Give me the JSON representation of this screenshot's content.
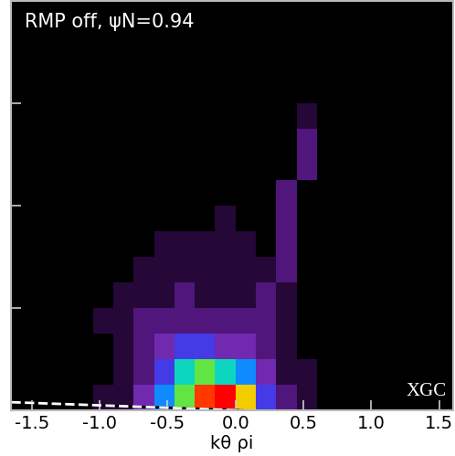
{
  "chart_data": {
    "type": "heatmap",
    "title": "RMP off, ψN=0.94",
    "annotation": "XGC",
    "x_label": "kθ ρi",
    "xlim": [
      -1.65,
      1.6
    ],
    "ylim": [
      0,
      4
    ],
    "xticks": [
      -1.5,
      {
        "value": -1,
        "label": "-1.0"
      },
      -0.5,
      {
        "value": 0,
        "label": "0.0"
      },
      0.5,
      {
        "value": 1,
        "label": "1.0"
      },
      1.5
    ],
    "yticks": [
      1,
      2,
      3
    ],
    "tick_labels": "x",
    "color_range": [
      0,
      10
    ],
    "x_edges": [
      -1.65,
      -1.5,
      -1.35,
      -1.2,
      -1.05,
      -0.9,
      -0.75,
      -0.6,
      -0.45,
      -0.3,
      -0.15,
      0.0,
      0.15,
      0.3,
      0.45,
      0.6,
      0.75,
      0.9,
      1.05,
      1.2,
      1.35,
      1.5,
      1.65
    ],
    "y_edges": [
      0,
      0.25,
      0.5,
      0.75,
      1.0,
      1.25,
      1.5,
      1.75,
      2.0,
      2.25,
      2.5,
      2.75,
      3.0,
      3.25,
      3.5,
      3.75,
      4.0
    ],
    "cells": [
      [
        0,
        0,
        0,
        0,
        1,
        1,
        3,
        5,
        7,
        9,
        10,
        8,
        4,
        2,
        1,
        0,
        0,
        0,
        0,
        0,
        0,
        0
      ],
      [
        0,
        0,
        0,
        0,
        0,
        1,
        2,
        4,
        6,
        7,
        6,
        5,
        3,
        1,
        1,
        0,
        0,
        0,
        0,
        0,
        0,
        0
      ],
      [
        0,
        0,
        0,
        0,
        0,
        1,
        2,
        3,
        4,
        4,
        3,
        3,
        2,
        1,
        0,
        0,
        0,
        0,
        0,
        0,
        0,
        0
      ],
      [
        0,
        0,
        0,
        0,
        1,
        1,
        2,
        2,
        2,
        2,
        2,
        2,
        2,
        1,
        0,
        0,
        0,
        0,
        0,
        0,
        0,
        0
      ],
      [
        0,
        0,
        0,
        0,
        0,
        1,
        1,
        1,
        2,
        1,
        1,
        1,
        2,
        1,
        0,
        0,
        0,
        0,
        0,
        0,
        0,
        0
      ],
      [
        0,
        0,
        0,
        0,
        0,
        0,
        1,
        1,
        1,
        1,
        1,
        1,
        1,
        2,
        0,
        0,
        0,
        0,
        0,
        0,
        0,
        0
      ],
      [
        0,
        0,
        0,
        0,
        0,
        0,
        0,
        1,
        1,
        1,
        1,
        1,
        0,
        2,
        0,
        0,
        0,
        0,
        0,
        0,
        0,
        0
      ],
      [
        0,
        0,
        0,
        0,
        0,
        0,
        0,
        0,
        0,
        0,
        1,
        0,
        0,
        2,
        0,
        0,
        0,
        0,
        0,
        0,
        0,
        0
      ],
      [
        0,
        0,
        0,
        0,
        0,
        0,
        0,
        0,
        0,
        0,
        0,
        0,
        0,
        2,
        0,
        0,
        0,
        0,
        0,
        0,
        0,
        0
      ],
      [
        0,
        0,
        0,
        0,
        0,
        0,
        0,
        0,
        0,
        0,
        0,
        0,
        0,
        0,
        2,
        0,
        0,
        0,
        0,
        0,
        0,
        0
      ],
      [
        0,
        0,
        0,
        0,
        0,
        0,
        0,
        0,
        0,
        0,
        0,
        0,
        0,
        0,
        2,
        0,
        0,
        0,
        0,
        0,
        0,
        0
      ],
      [
        0,
        0,
        0,
        0,
        0,
        0,
        0,
        0,
        0,
        0,
        0,
        0,
        0,
        0,
        1,
        0,
        0,
        0,
        0,
        0,
        0,
        0
      ],
      [
        0,
        0,
        0,
        0,
        0,
        0,
        0,
        0,
        0,
        0,
        0,
        0,
        0,
        0,
        0,
        0,
        0,
        0,
        0,
        0,
        0,
        0
      ],
      [
        0,
        0,
        0,
        0,
        0,
        0,
        0,
        0,
        0,
        0,
        0,
        0,
        0,
        0,
        0,
        0,
        0,
        0,
        0,
        0,
        0,
        0
      ],
      [
        0,
        0,
        0,
        0,
        0,
        0,
        0,
        0,
        0,
        0,
        0,
        0,
        0,
        0,
        0,
        0,
        0,
        0,
        0,
        0,
        0,
        0
      ],
      [
        0,
        0,
        0,
        0,
        0,
        0,
        0,
        0,
        0,
        0,
        0,
        0,
        0,
        0,
        0,
        0,
        0,
        0,
        0,
        0,
        0,
        0
      ]
    ],
    "lines": [
      {
        "x": [
          -1.65,
          -0.8,
          0.05
        ],
        "y": [
          0.08,
          0.04,
          0.0
        ],
        "color": "white",
        "line_style": "dashed"
      }
    ]
  }
}
